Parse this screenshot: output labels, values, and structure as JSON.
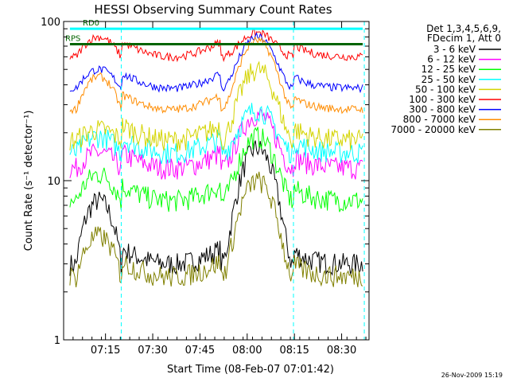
{
  "chart_data": {
    "type": "line",
    "title": "HESSI Observing Summary Count Rates",
    "xlabel": "Start Time (08-Feb-07 07:01:42)",
    "ylabel": "Count Rate (s⁻¹ detector⁻¹)",
    "yscale": "log",
    "ylim": [
      1,
      100
    ],
    "xlim_minutes": [
      0,
      97
    ],
    "x_ticks": [
      {
        "minute": 13.3,
        "label": "07:15"
      },
      {
        "minute": 28.3,
        "label": "07:30"
      },
      {
        "minute": 43.3,
        "label": "07:45"
      },
      {
        "minute": 58.3,
        "label": "08:00"
      },
      {
        "minute": 73.3,
        "label": "08:15"
      },
      {
        "minute": 88.3,
        "label": "08:30"
      }
    ],
    "y_ticks": [
      {
        "value": 1,
        "label": "1"
      },
      {
        "value": 10,
        "label": "10"
      },
      {
        "value": 100,
        "label": "100"
      }
    ],
    "legend_header": [
      "Det 1,3,4,5,6,9,",
      "FDecim 1, Att 0"
    ],
    "legend_position": "right",
    "timestamp": "26-Nov-2009 15:19",
    "flags": [
      {
        "label": "RD0",
        "color": "#00ffff",
        "level": 90
      },
      {
        "label": "RPS",
        "color": "#006400",
        "level": 72
      }
    ],
    "night_boundaries_minutes": [
      18.3,
      73.0
    ],
    "saa_boundaries_minutes": [
      0.0,
      95.5
    ],
    "series": [
      {
        "name": "3 - 6 keV",
        "color": "#000000",
        "profile": "lowband",
        "base": 3.0,
        "edge_peak": 7.5,
        "peak": 16
      },
      {
        "name": "6 - 12 keV",
        "color": "#ff00ff",
        "profile": "lowband",
        "base": 12,
        "edge_peak": 15,
        "peak": 26
      },
      {
        "name": "12 - 25 keV",
        "color": "#00ff00",
        "profile": "lowband",
        "base": 7.5,
        "edge_peak": 11,
        "peak": 19
      },
      {
        "name": "25 - 50 keV",
        "color": "#00ffff",
        "profile": "lowband",
        "base": 15,
        "edge_peak": 19,
        "peak": 28
      },
      {
        "name": "50 - 100 keV",
        "color": "#d4d400",
        "profile": "lowband",
        "base": 18,
        "edge_peak": 21,
        "peak": 50
      },
      {
        "name": "100 - 300 keV",
        "color": "#ff0000",
        "profile": "highband",
        "base": 60,
        "edge_peak": 80,
        "peak": 85
      },
      {
        "name": "300 - 800 keV",
        "color": "#0000ff",
        "profile": "highband",
        "base": 38,
        "edge_peak": 50,
        "peak": 80
      },
      {
        "name": "800 - 7000 keV",
        "color": "#ff8c00",
        "profile": "highband",
        "base": 28,
        "edge_peak": 45,
        "peak": 76
      },
      {
        "name": "7000 - 20000 keV",
        "color": "#808000",
        "profile": "lowband",
        "base": 2.5,
        "edge_peak": 4.5,
        "peak": 10
      }
    ]
  }
}
